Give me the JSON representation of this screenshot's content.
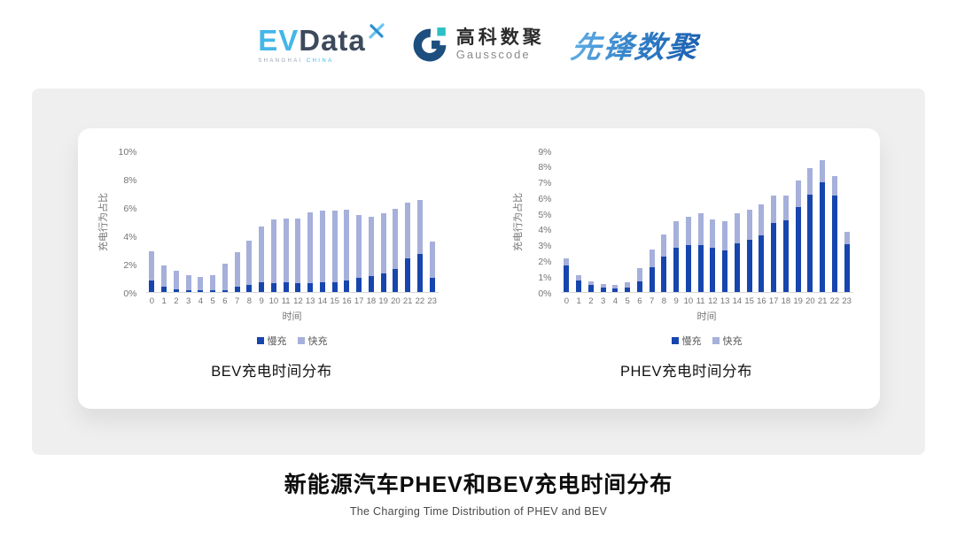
{
  "page": {
    "background": "#ffffff",
    "panel_color": "#efeff0",
    "card_color": "#ffffff"
  },
  "header": {
    "evdata_logo": {
      "ev": "EV",
      "data": "Data",
      "sub_shanghai": "SHANGHAI",
      "sub_china": "CHINA",
      "ev_color": "#45b6e8",
      "data_color": "#3d4a5c"
    },
    "gausscode_logo": {
      "cn_name": "高科数聚",
      "en_name": "Gausscode",
      "mark_dark": "#1c4f7f",
      "mark_teal": "#2cc0c4"
    },
    "pioneer_logo": {
      "text": "先锋数聚",
      "color": "#2f7cc4"
    }
  },
  "chart_data": [
    {
      "type": "bar",
      "stacked": true,
      "title": "BEV充电时间分布",
      "xlabel": "时间",
      "ylabel": "充电行为占比",
      "categories": [
        "0",
        "1",
        "2",
        "3",
        "4",
        "5",
        "6",
        "7",
        "8",
        "9",
        "10",
        "11",
        "12",
        "13",
        "14",
        "15",
        "16",
        "17",
        "18",
        "19",
        "20",
        "21",
        "22",
        "23"
      ],
      "series": [
        {
          "name": "慢充",
          "color": "#1745ae",
          "values": [
            0.8,
            0.4,
            0.2,
            0.15,
            0.1,
            0.1,
            0.15,
            0.4,
            0.5,
            0.7,
            0.65,
            0.7,
            0.6,
            0.65,
            0.7,
            0.7,
            0.8,
            1.0,
            1.1,
            1.3,
            1.6,
            2.4,
            2.7,
            1.0
          ]
        },
        {
          "name": "快充",
          "color": "#a6b0db",
          "values": [
            2.1,
            1.5,
            1.3,
            1.05,
            0.95,
            1.1,
            1.85,
            2.4,
            3.1,
            3.9,
            4.5,
            4.5,
            4.6,
            4.95,
            5.05,
            5.05,
            5.0,
            4.45,
            4.2,
            4.25,
            4.25,
            3.9,
            3.8,
            2.55
          ]
        }
      ],
      "ylim": [
        0,
        10
      ],
      "ytick_step": 2,
      "ytick_suffix": "%",
      "grid": false,
      "legend_position": "bottom"
    },
    {
      "type": "bar",
      "stacked": true,
      "title": "PHEV充电时间分布",
      "xlabel": "时间",
      "ylabel": "充电行为占比",
      "categories": [
        "0",
        "1",
        "2",
        "3",
        "4",
        "5",
        "6",
        "7",
        "8",
        "9",
        "10",
        "11",
        "12",
        "13",
        "14",
        "15",
        "16",
        "17",
        "18",
        "19",
        "20",
        "21",
        "22",
        "23"
      ],
      "series": [
        {
          "name": "慢充",
          "color": "#1745ae",
          "values": [
            1.7,
            0.75,
            0.45,
            0.3,
            0.25,
            0.3,
            0.7,
            1.55,
            2.25,
            2.8,
            3.0,
            3.0,
            2.8,
            2.65,
            3.1,
            3.3,
            3.6,
            4.4,
            4.55,
            5.4,
            6.2,
            7.0,
            6.15,
            3.05
          ]
        },
        {
          "name": "快充",
          "color": "#a6b0db",
          "values": [
            0.45,
            0.35,
            0.25,
            0.2,
            0.2,
            0.35,
            0.85,
            1.15,
            1.4,
            1.7,
            1.8,
            2.0,
            1.8,
            1.85,
            1.9,
            1.95,
            1.95,
            1.75,
            1.6,
            1.7,
            1.7,
            1.4,
            1.2,
            0.8
          ]
        }
      ],
      "ylim": [
        0,
        9
      ],
      "ytick_step": 1,
      "ytick_suffix": "%",
      "grid": false,
      "legend_position": "bottom"
    }
  ],
  "footer": {
    "title": "新能源汽车PHEV和BEV充电时间分布",
    "subtitle": "The Charging Time Distribution of PHEV and BEV"
  }
}
